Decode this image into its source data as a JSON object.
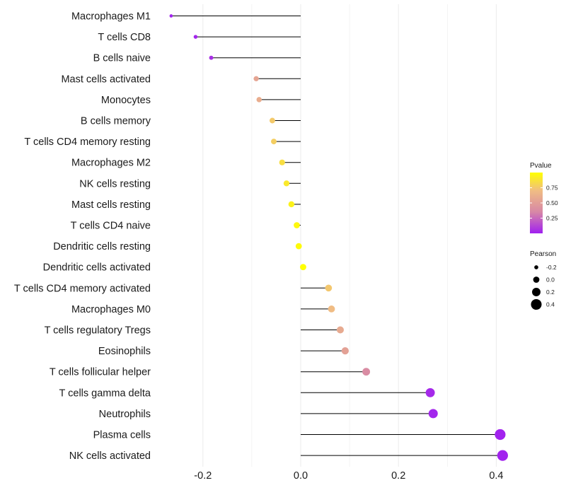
{
  "chart_data": {
    "type": "lollipop",
    "categories": [
      "Macrophages M1",
      "T cells CD8",
      "B cells naive",
      "Mast cells activated",
      "Monocytes",
      "B cells memory",
      "T cells CD4 memory resting",
      "Macrophages M2",
      "NK cells resting",
      "Mast cells resting",
      "T cells CD4 naive",
      "Dendritic cells resting",
      "Dendritic cells activated",
      "T cells CD4 memory activated",
      "Macrophages M0",
      "T cells regulatory  Tregs ",
      "Eosinophils",
      "T cells follicular helper",
      "T cells gamma delta",
      "Neutrophils",
      "Plasma cells",
      "NK cells activated"
    ],
    "values": [
      -0.265,
      -0.215,
      -0.183,
      -0.091,
      -0.085,
      -0.058,
      -0.055,
      -0.038,
      -0.029,
      -0.019,
      -0.008,
      -0.004,
      0.005,
      0.057,
      0.063,
      0.081,
      0.091,
      0.134,
      0.265,
      0.271,
      0.408,
      0.413
    ],
    "pvalues": [
      0.01,
      0.02,
      0.05,
      0.55,
      0.6,
      0.76,
      0.78,
      0.85,
      0.9,
      0.94,
      0.97,
      0.98,
      1.0,
      0.75,
      0.7,
      0.58,
      0.52,
      0.38,
      0.03,
      0.02,
      0.01,
      0.01
    ],
    "xticks": [
      -0.2,
      0.0,
      0.2,
      0.4
    ],
    "xtick_labels": [
      "-0.2",
      "0.0",
      "0.2",
      "0.4"
    ],
    "xlim": [
      -0.31,
      0.42
    ],
    "grid": true,
    "color_legend": {
      "title": "Pvalue",
      "ticks": [
        0.75,
        0.5,
        0.25
      ],
      "tick_labels": [
        "0.75",
        "0.50",
        "0.25"
      ],
      "range": [
        0,
        1
      ],
      "colors": [
        "#ffff00",
        "#f0bc84",
        "#d787a6",
        "#a020f0"
      ]
    },
    "size_legend": {
      "title": "Pearson",
      "values": [
        -0.2,
        0.0,
        0.2,
        0.4
      ],
      "labels": [
        "-0.2",
        "0.0",
        "0.2",
        "0.4"
      ]
    },
    "legend_position": "right"
  }
}
